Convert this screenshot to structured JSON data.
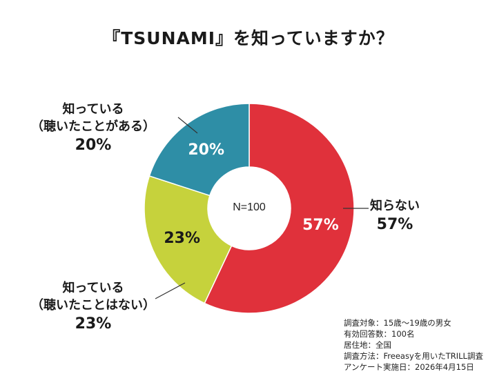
{
  "title": "『TSUNAMI』を知っていますか？",
  "colors": {
    "unknown": "#E0313B",
    "heard": "#2E8EA6",
    "not_heard": "#C6D23C",
    "leader_line": "#333333"
  },
  "chart_data": {
    "type": "pie",
    "style": "donut",
    "title": "『TSUNAMI』を知っていますか？",
    "center_label": "N=100",
    "start_angle_deg": 0,
    "direction": "clockwise",
    "slices": [
      {
        "key": "unknown",
        "label": "知らない",
        "value": 57,
        "display": "57%",
        "color": "#E0313B"
      },
      {
        "key": "not_heard",
        "label": "知っている（聴いたことはない）",
        "value": 23,
        "display": "23%",
        "color": "#C6D23C"
      },
      {
        "key": "heard",
        "label": "知っている（聴いたことがある）",
        "value": 20,
        "display": "20%",
        "color": "#2E8EA6"
      }
    ]
  },
  "callouts": {
    "unknown": {
      "line1": "知らない",
      "pct": "57%"
    },
    "not_heard": {
      "line1": "知っている",
      "line2": "（聴いたことはない）",
      "pct": "23%"
    },
    "heard": {
      "line1": "知っている",
      "line2": "（聴いたことがある）",
      "pct": "20%"
    }
  },
  "notes": [
    "調査対象：15歳～19歳の男女",
    "有効回答数：100名",
    "居住地：全国",
    "調査方法：Freeasyを用いたTRILL調査",
    "アンケート実施日：2026年4月15日"
  ]
}
